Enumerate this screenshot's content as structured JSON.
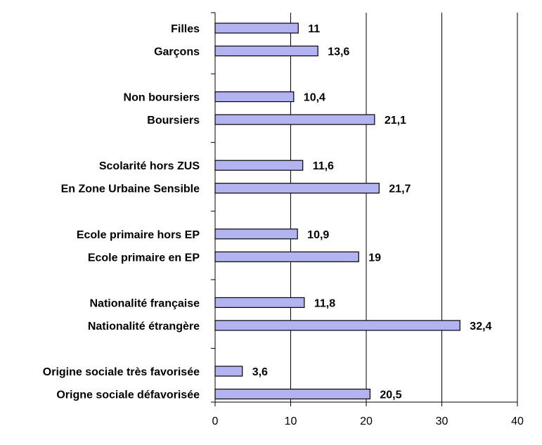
{
  "chart_data": {
    "type": "bar",
    "orientation": "horizontal",
    "categories": [
      "Filles",
      "Garçons",
      "Non boursiers",
      "Boursiers",
      "Scolarité hors ZUS",
      "En Zone Urbaine Sensible",
      "Ecole primaire hors EP",
      "Ecole primaire en EP",
      "Nationalité française",
      "Nationalité étrangère",
      "Origine sociale très favorisée",
      "Origne sociale défavorisée"
    ],
    "values": [
      11,
      13.6,
      10.4,
      21.1,
      11.6,
      21.7,
      10.9,
      19,
      11.8,
      32.4,
      3.6,
      20.5
    ],
    "value_labels": [
      "11",
      "13,6",
      "10,4",
      "21,1",
      "11,6",
      "21,7",
      "10,9",
      "19",
      "11,8",
      "32,4",
      "3,6",
      "20,5"
    ],
    "groups": [
      [
        0,
        1
      ],
      [
        2,
        3
      ],
      [
        4,
        5
      ],
      [
        6,
        7
      ],
      [
        8,
        9
      ],
      [
        10,
        11
      ]
    ],
    "xlim": [
      0,
      40
    ],
    "xticks": [
      0,
      10,
      20,
      30,
      40
    ],
    "grid": "vertical",
    "legend": "none",
    "bar_color": "#b3b3f2",
    "bar_border_color": "#000000"
  }
}
